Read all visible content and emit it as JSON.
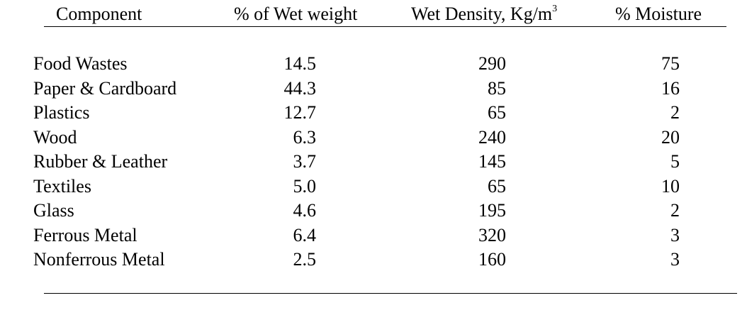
{
  "table": {
    "header": [
      "Component",
      "% of Wet weight",
      {
        "text": "Wet Density, Kg/m",
        "sup": "3"
      },
      "% Moisture"
    ],
    "rows": [
      [
        "Food Wastes",
        "14.5",
        "290",
        "75"
      ],
      [
        "Paper & Cardboard",
        "44.3",
        "85",
        "16"
      ],
      [
        "Plastics",
        "12.7",
        "65",
        "2"
      ],
      [
        "Wood",
        "6.3",
        "240",
        "20"
      ],
      [
        "Rubber & Leather",
        "3.7",
        "145",
        "5"
      ],
      [
        "Textiles",
        "5.0",
        "65",
        "10"
      ],
      [
        "Glass",
        "4.6",
        "195",
        "2"
      ],
      [
        "Ferrous Metal",
        "6.4",
        "320",
        "3"
      ],
      [
        "Nonferrous Metal",
        "2.5",
        "160",
        "3"
      ]
    ]
  }
}
